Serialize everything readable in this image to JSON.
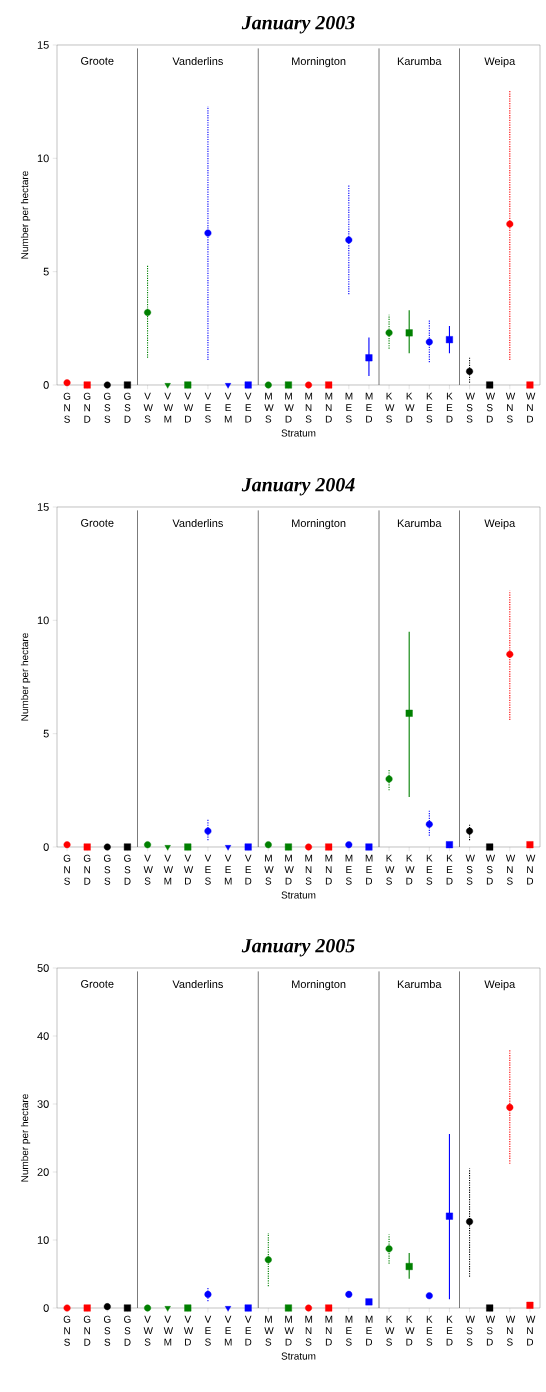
{
  "chart_data": [
    {
      "type": "scatter",
      "title": "January 2003",
      "xlabel": "Stratum",
      "ylabel": "Number per hectare",
      "categories": [
        "G N S",
        "G N D",
        "G S S",
        "G S D",
        "V W S",
        "V W M",
        "V W D",
        "V E S",
        "V E M",
        "V E D",
        "M W S",
        "M W D",
        "M N S",
        "M N D",
        "M E S",
        "M E D",
        "K W S",
        "K W D",
        "K E S",
        "K E D",
        "W S S",
        "W S D",
        "W N S",
        "W N D"
      ],
      "ylim": [
        0,
        15
      ],
      "yticks": [
        0,
        5,
        10,
        15
      ],
      "annotations": [
        "Groote",
        "Vanderlins",
        "Mornington",
        "Karumba",
        "Weipa"
      ],
      "series": [
        {
          "marker": "circle",
          "line_style": "dotted",
          "values": [
            0.1,
            null,
            0,
            null,
            3.2,
            null,
            null,
            6.7,
            null,
            null,
            0,
            null,
            0,
            null,
            6.4,
            null,
            2.3,
            null,
            1.9,
            null,
            0.6,
            null,
            7.1,
            null
          ],
          "colors": [
            "#ff0000",
            null,
            "#000000",
            null,
            "#008000",
            null,
            null,
            "#0000ff",
            null,
            null,
            "#008000",
            null,
            "#ff0000",
            null,
            "#0000ff",
            null,
            "#008000",
            null,
            "#0000ff",
            null,
            "#000000",
            null,
            "#ff0000",
            null
          ],
          "errors": [
            null,
            null,
            null,
            null,
            [
              1.2,
              5.3
            ],
            null,
            null,
            [
              1.1,
              12.3
            ],
            null,
            null,
            null,
            null,
            null,
            null,
            [
              4.0,
              8.8
            ],
            null,
            [
              1.6,
              3.1
            ],
            null,
            [
              1.0,
              2.9
            ],
            null,
            [
              0.1,
              1.2
            ],
            null,
            [
              1.1,
              13.0
            ],
            null
          ]
        },
        {
          "marker": "square",
          "line_style": "solid",
          "values": [
            null,
            0,
            null,
            0,
            null,
            null,
            0,
            null,
            null,
            0,
            null,
            0,
            null,
            0,
            null,
            1.2,
            null,
            2.3,
            null,
            2.0,
            null,
            0,
            null,
            0
          ],
          "colors": [
            null,
            "#ff0000",
            null,
            "#000000",
            null,
            null,
            "#008000",
            null,
            null,
            "#0000ff",
            null,
            "#008000",
            null,
            "#ff0000",
            null,
            "#0000ff",
            null,
            "#008000",
            null,
            "#0000ff",
            null,
            "#000000",
            null,
            "#ff0000"
          ],
          "errors": [
            null,
            null,
            null,
            null,
            null,
            null,
            null,
            null,
            null,
            null,
            null,
            null,
            null,
            null,
            null,
            [
              0.4,
              2.1
            ],
            null,
            [
              1.4,
              3.3
            ],
            null,
            [
              1.4,
              2.6
            ],
            null,
            null,
            null,
            null
          ]
        },
        {
          "marker": "triangle",
          "values": [
            null,
            null,
            null,
            null,
            null,
            0,
            null,
            null,
            0,
            null,
            null,
            null,
            null,
            null,
            null,
            null,
            null,
            null,
            null,
            null,
            null,
            null,
            null,
            null
          ],
          "colors": [
            null,
            null,
            null,
            null,
            null,
            "#008000",
            null,
            null,
            "#0000ff",
            null,
            null,
            null,
            null,
            null,
            null,
            null,
            null,
            null,
            null,
            null,
            null,
            null,
            null,
            null
          ]
        }
      ]
    },
    {
      "type": "scatter",
      "title": "January 2004",
      "xlabel": "Stratum",
      "ylabel": "Number per hectare",
      "categories": [
        "G N S",
        "G N D",
        "G S S",
        "G S D",
        "V W S",
        "V W M",
        "V W D",
        "V E S",
        "V E M",
        "V E D",
        "M W S",
        "M W D",
        "M N S",
        "M N D",
        "M E S",
        "M E D",
        "K W S",
        "K W D",
        "K E S",
        "K E D",
        "W S S",
        "W S D",
        "W N S",
        "W N D"
      ],
      "ylim": [
        0,
        15
      ],
      "yticks": [
        0,
        5,
        10,
        15
      ],
      "annotations": [
        "Groote",
        "Vanderlins",
        "Mornington",
        "Karumba",
        "Weipa"
      ],
      "series": [
        {
          "marker": "circle",
          "line_style": "dotted",
          "values": [
            0.1,
            null,
            0,
            null,
            0.1,
            null,
            null,
            0.7,
            null,
            null,
            0.1,
            null,
            0,
            null,
            0.1,
            null,
            3.0,
            null,
            1.0,
            null,
            0.7,
            null,
            8.5,
            null
          ],
          "colors": [
            "#ff0000",
            null,
            "#000000",
            null,
            "#008000",
            null,
            null,
            "#0000ff",
            null,
            null,
            "#008000",
            null,
            "#ff0000",
            null,
            "#0000ff",
            null,
            "#008000",
            null,
            "#0000ff",
            null,
            "#000000",
            null,
            "#ff0000",
            null
          ],
          "errors": [
            null,
            null,
            null,
            null,
            null,
            null,
            null,
            [
              0.3,
              1.2
            ],
            null,
            null,
            null,
            null,
            null,
            null,
            null,
            null,
            [
              2.5,
              3.4
            ],
            null,
            [
              0.5,
              1.6
            ],
            null,
            [
              0.3,
              1.0
            ],
            null,
            [
              5.6,
              11.3
            ],
            null
          ]
        },
        {
          "marker": "square",
          "line_style": "solid",
          "values": [
            null,
            0,
            null,
            0,
            null,
            null,
            0,
            null,
            null,
            0,
            null,
            0,
            null,
            0,
            null,
            0,
            null,
            5.9,
            null,
            0.1,
            null,
            0,
            null,
            0.1
          ],
          "colors": [
            null,
            "#ff0000",
            null,
            "#000000",
            null,
            null,
            "#008000",
            null,
            null,
            "#0000ff",
            null,
            "#008000",
            null,
            "#ff0000",
            null,
            "#0000ff",
            null,
            "#008000",
            null,
            "#0000ff",
            null,
            "#000000",
            null,
            "#ff0000"
          ],
          "errors": [
            null,
            null,
            null,
            null,
            null,
            null,
            null,
            null,
            null,
            null,
            null,
            null,
            null,
            null,
            null,
            null,
            null,
            [
              2.2,
              9.5
            ],
            null,
            null,
            null,
            null,
            null,
            null
          ]
        },
        {
          "marker": "triangle",
          "values": [
            null,
            null,
            null,
            null,
            null,
            0,
            null,
            null,
            0,
            null,
            null,
            null,
            null,
            null,
            null,
            null,
            null,
            null,
            null,
            null,
            null,
            null,
            null,
            null
          ],
          "colors": [
            null,
            null,
            null,
            null,
            null,
            "#008000",
            null,
            null,
            "#0000ff",
            null,
            null,
            null,
            null,
            null,
            null,
            null,
            null,
            null,
            null,
            null,
            null,
            null,
            null,
            null
          ]
        }
      ]
    },
    {
      "type": "scatter",
      "title": "January 2005",
      "xlabel": "Stratum",
      "ylabel": "Number per hectare",
      "categories": [
        "G N S",
        "G N D",
        "G S S",
        "G S D",
        "V W S",
        "V W M",
        "V W D",
        "V E S",
        "V E M",
        "V E D",
        "M W S",
        "M W D",
        "M N S",
        "M N D",
        "M E S",
        "M E D",
        "K W S",
        "K W D",
        "K E S",
        "K E D",
        "W S S",
        "W S D",
        "W N S",
        "W N D"
      ],
      "ylim": [
        0,
        50
      ],
      "yticks": [
        0,
        10,
        20,
        30,
        40,
        50
      ],
      "annotations": [
        "Groote",
        "Vanderlins",
        "Mornington",
        "Karumba",
        "Weipa"
      ],
      "series": [
        {
          "marker": "circle",
          "line_style": "dotted",
          "values": [
            0,
            null,
            0.2,
            null,
            0,
            null,
            null,
            2.0,
            null,
            null,
            7.1,
            null,
            0,
            null,
            2.0,
            null,
            8.7,
            null,
            1.8,
            null,
            12.7,
            null,
            29.5,
            null
          ],
          "colors": [
            "#ff0000",
            null,
            "#000000",
            null,
            "#008000",
            null,
            null,
            "#0000ff",
            null,
            null,
            "#008000",
            null,
            "#ff0000",
            null,
            "#0000ff",
            null,
            "#008000",
            null,
            "#0000ff",
            null,
            "#000000",
            null,
            "#ff0000",
            null
          ],
          "errors": [
            null,
            null,
            null,
            null,
            null,
            null,
            null,
            [
              1.0,
              3.0
            ],
            null,
            null,
            [
              3.2,
              11.0
            ],
            null,
            null,
            null,
            null,
            null,
            [
              6.5,
              10.8
            ],
            null,
            null,
            null,
            [
              4.6,
              20.5
            ],
            null,
            [
              21.2,
              38.0
            ],
            null
          ]
        },
        {
          "marker": "square",
          "line_style": "solid",
          "values": [
            null,
            0,
            null,
            0,
            null,
            null,
            0,
            null,
            null,
            0,
            null,
            0,
            null,
            0,
            null,
            0.9,
            null,
            6.1,
            null,
            13.5,
            null,
            0,
            null,
            0.4
          ],
          "colors": [
            null,
            "#ff0000",
            null,
            "#000000",
            null,
            null,
            "#008000",
            null,
            null,
            "#0000ff",
            null,
            "#008000",
            null,
            "#ff0000",
            null,
            "#0000ff",
            null,
            "#008000",
            null,
            "#0000ff",
            null,
            "#000000",
            null,
            "#ff0000"
          ],
          "errors": [
            null,
            null,
            null,
            null,
            null,
            null,
            null,
            null,
            null,
            null,
            null,
            null,
            null,
            null,
            null,
            null,
            null,
            [
              4.3,
              8.1
            ],
            null,
            [
              1.3,
              25.6
            ],
            null,
            null,
            null,
            null
          ]
        },
        {
          "marker": "triangle",
          "values": [
            null,
            null,
            null,
            null,
            null,
            0,
            null,
            null,
            0,
            null,
            null,
            null,
            null,
            null,
            null,
            null,
            null,
            null,
            null,
            null,
            null,
            null,
            null,
            null
          ],
          "colors": [
            null,
            null,
            null,
            null,
            null,
            "#008000",
            null,
            null,
            "#0000ff",
            null,
            null,
            null,
            null,
            null,
            null,
            null,
            null,
            null,
            null,
            null,
            null,
            null,
            null,
            null
          ]
        }
      ]
    }
  ]
}
